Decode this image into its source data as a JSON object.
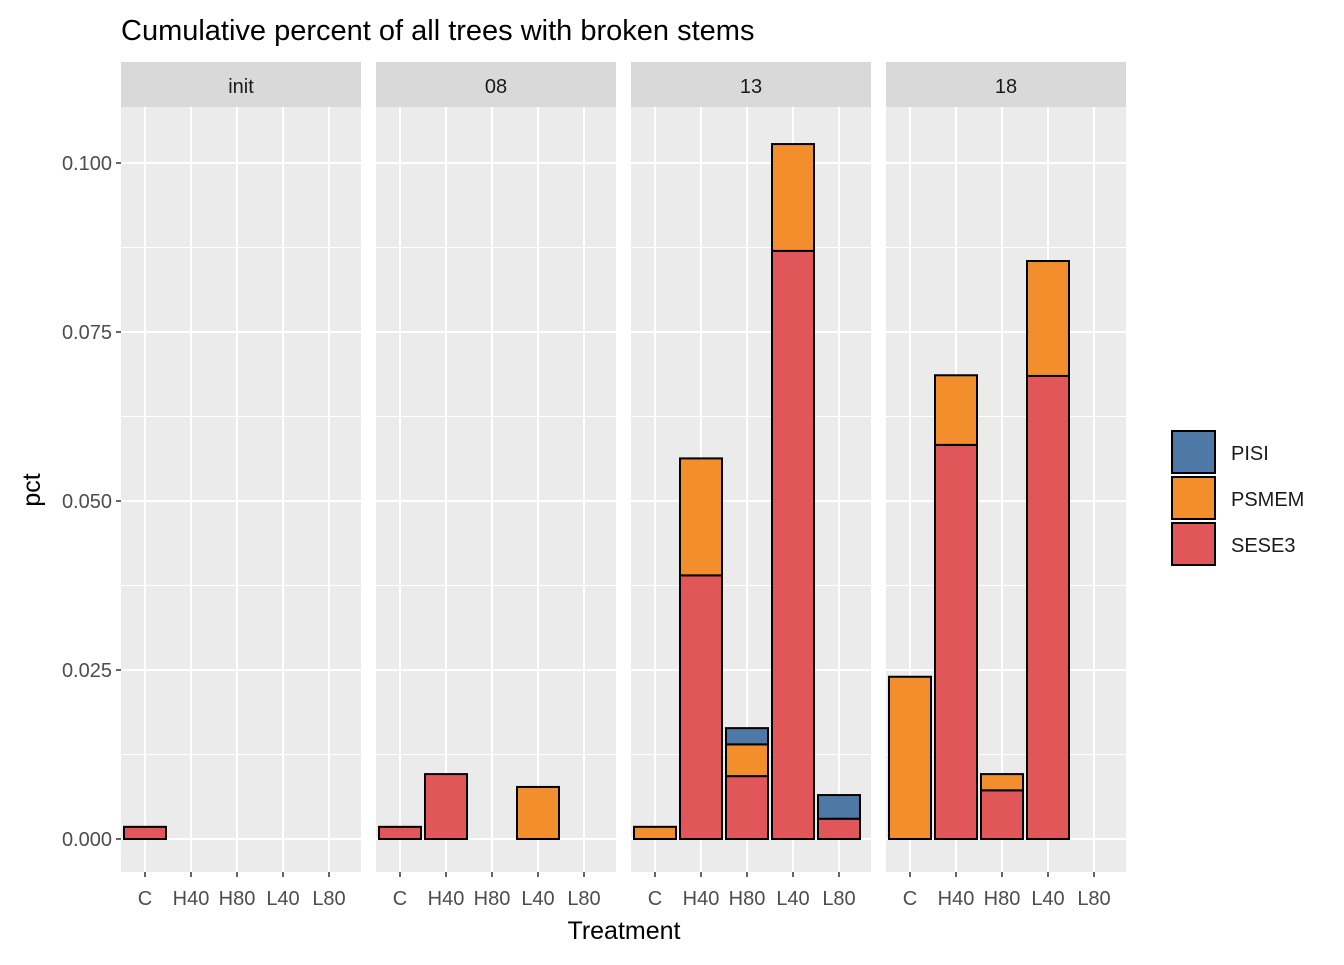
{
  "chart_data": {
    "type": "bar",
    "stacked": true,
    "faceted": true,
    "title": "Cumulative percent of all trees with broken stems",
    "xlabel": "Treatment",
    "ylabel": "pct",
    "ylim": [
      -0.005,
      0.105
    ],
    "yticks": [
      0.0,
      0.025,
      0.05,
      0.075,
      0.1
    ],
    "ytick_labels": [
      "0.000",
      "0.025",
      "0.050",
      "0.075",
      "0.100"
    ],
    "categories": [
      "C",
      "H40",
      "H80",
      "L40",
      "L80"
    ],
    "grid": true,
    "legend": {
      "position": "right",
      "entries": [
        {
          "name": "PISI",
          "color": "#4e79a7"
        },
        {
          "name": "PSMEM",
          "color": "#f28e2b"
        },
        {
          "name": "SESE3",
          "color": "#e15759"
        }
      ]
    },
    "stack_order_bottom_to_top": [
      "SESE3",
      "PSMEM",
      "PISI"
    ],
    "panels": [
      {
        "label": "init",
        "series": [
          {
            "name": "SESE3",
            "values": [
              0.0018,
              0,
              0,
              0,
              0
            ]
          },
          {
            "name": "PSMEM",
            "values": [
              0,
              0,
              0,
              0,
              0
            ]
          },
          {
            "name": "PISI",
            "values": [
              0,
              0,
              0,
              0,
              0
            ]
          }
        ]
      },
      {
        "label": "08",
        "series": [
          {
            "name": "SESE3",
            "values": [
              0.0018,
              0.0096,
              0,
              0,
              0
            ]
          },
          {
            "name": "PSMEM",
            "values": [
              0,
              0,
              0,
              0.0077,
              0
            ]
          },
          {
            "name": "PISI",
            "values": [
              0,
              0,
              0,
              0,
              0
            ]
          }
        ]
      },
      {
        "label": "13",
        "series": [
          {
            "name": "SESE3",
            "values": [
              0,
              0.039,
              0.0093,
              0.087,
              0.003
            ]
          },
          {
            "name": "PSMEM",
            "values": [
              0.0018,
              0.0173,
              0.0047,
              0.0158,
              0
            ]
          },
          {
            "name": "PISI",
            "values": [
              0,
              0,
              0.0024,
              0,
              0.0035
            ]
          }
        ]
      },
      {
        "label": "18",
        "series": [
          {
            "name": "SESE3",
            "values": [
              0,
              0.0583,
              0.0072,
              0.0685,
              0
            ]
          },
          {
            "name": "PSMEM",
            "values": [
              0.024,
              0.0103,
              0.0024,
              0.017,
              0
            ]
          },
          {
            "name": "PISI",
            "values": [
              0,
              0,
              0,
              0,
              0
            ]
          }
        ]
      }
    ]
  }
}
